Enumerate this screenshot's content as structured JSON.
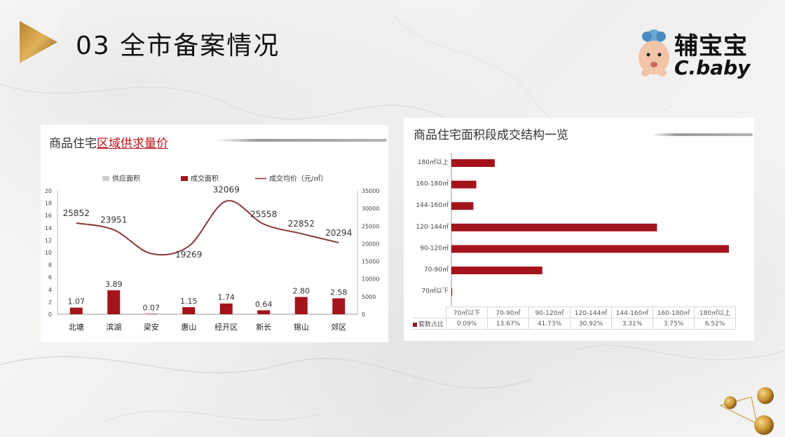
{
  "header": {
    "title": "03 全市备案情况",
    "logo_cn": "辅宝宝",
    "logo_en": "C.baby"
  },
  "colors": {
    "bar": "#a3141c",
    "line": "#8a3a3a",
    "supply": "#cfcfcf",
    "accent": "#c0141c"
  },
  "left_panel": {
    "title_plain": "商品住宅",
    "title_emph": "区域供求量价"
  },
  "right_panel": {
    "title": "商品住宅面积段成交结构一览"
  },
  "chart_data": [
    {
      "type": "bar",
      "legend": [
        "供应面积",
        "成交面积",
        "成交均价（元/㎡）"
      ],
      "legend_placement": "top",
      "categories": [
        "北塘",
        "滨湖",
        "梁安",
        "惠山",
        "经开区",
        "新长",
        "锡山",
        "郊区"
      ],
      "series": [
        {
          "name": "供应面积",
          "type": "bar",
          "values": [
            0,
            0,
            0,
            0,
            0,
            0,
            0,
            0
          ]
        },
        {
          "name": "成交面积",
          "type": "bar",
          "values": [
            1.07,
            3.89,
            0.07,
            1.15,
            1.74,
            0.64,
            2.8,
            2.58
          ]
        },
        {
          "name": "成交均价（元/㎡）",
          "type": "line",
          "axis": "right",
          "values": [
            25852,
            23951,
            17200,
            19269,
            32069,
            25558,
            22852,
            20294
          ]
        }
      ],
      "data_labels_bar": [
        "1.07",
        "3.89",
        "0.07",
        "1.15",
        "1.74",
        "0.64",
        "2.80",
        "2.58"
      ],
      "data_labels_line": [
        "25852",
        "23951",
        "",
        "19269",
        "32069",
        "25558",
        "22852",
        "20294"
      ],
      "y_left": {
        "min": 0,
        "max": 20,
        "ticks": [
          "0",
          "2",
          "4",
          "6",
          "8",
          "10",
          "12",
          "14",
          "16",
          "18",
          "20"
        ]
      },
      "y_right": {
        "min": 0,
        "max": 35000,
        "ticks": [
          "0",
          "5000",
          "10000",
          "15000",
          "20000",
          "25000",
          "30000",
          "35000"
        ]
      },
      "grid": false
    },
    {
      "type": "bar",
      "orientation": "horizontal",
      "categories": [
        "180㎡以上",
        "160-180㎡",
        "144-160㎡",
        "120-144㎡",
        "90-120㎡",
        "70-90㎡",
        "70㎡以下"
      ],
      "values": [
        6.52,
        3.75,
        3.31,
        30.92,
        41.73,
        13.67,
        0.09
      ],
      "unit": "%",
      "table": {
        "header": [
          "70㎡以下",
          "70-90㎡",
          "90-120㎡",
          "120-144㎡",
          "144-160㎡",
          "160-180㎡",
          "180㎡以上"
        ],
        "row_label": "套数占比",
        "row": [
          "0.09%",
          "13.67%",
          "41.73%",
          "30.92%",
          "3.31%",
          "3.75%",
          "6.52%"
        ]
      },
      "grid": false
    }
  ]
}
